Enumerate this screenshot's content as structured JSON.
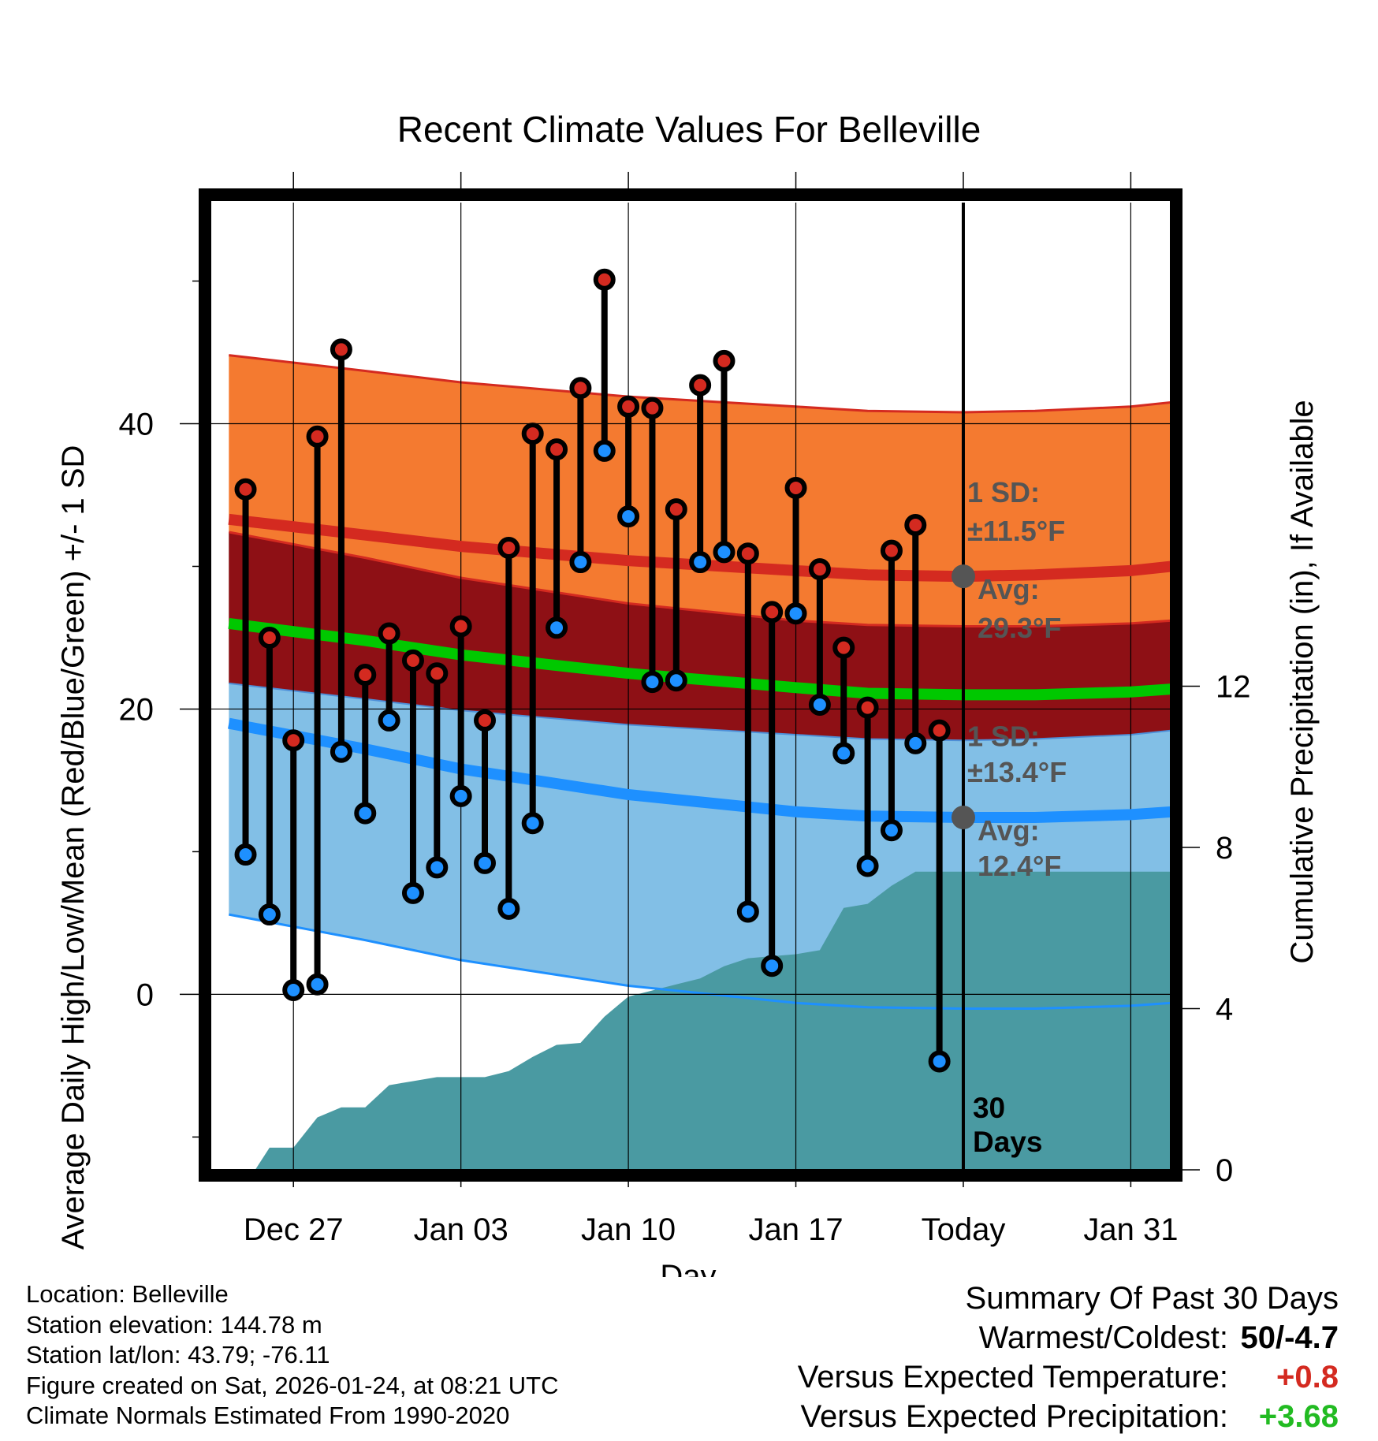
{
  "chart_data": {
    "type": "line",
    "title": "Recent Climate Values For Belleville",
    "xlabel": "Day",
    "ylabel": "Average Daily High/Low/Mean (Red/Blue/Green) +/- 1 SD",
    "y2label": "Cumulative Precipitation (in), If Available",
    "xlim": [
      -3.5,
      36.7
    ],
    "ylim": [
      -12.3,
      55.5
    ],
    "y2lim": [
      0,
      24
    ],
    "x_ticks": [
      {
        "x": 0,
        "label": "Dec 27"
      },
      {
        "x": 7,
        "label": "Jan 03"
      },
      {
        "x": 14,
        "label": "Jan 10"
      },
      {
        "x": 21,
        "label": "Jan 17"
      },
      {
        "x": 28,
        "label": "Today"
      },
      {
        "x": 35,
        "label": "Jan 31"
      }
    ],
    "y_ticks": [
      0,
      20,
      40
    ],
    "y2_ticks": [
      0,
      4,
      8,
      12
    ],
    "today_x": 28,
    "today_label_line1": "30",
    "today_label_line2": "Days",
    "daily": {
      "x": [
        -2,
        -1,
        0,
        1,
        2,
        3,
        4,
        5,
        6,
        7,
        8,
        9,
        10,
        11,
        12,
        13,
        14,
        15,
        16,
        17,
        18,
        19,
        20,
        21,
        22,
        23,
        24,
        25,
        26,
        27
      ],
      "high": [
        35.4,
        25.0,
        17.8,
        39.1,
        45.2,
        22.4,
        25.3,
        23.4,
        22.5,
        25.8,
        19.2,
        31.3,
        39.3,
        38.2,
        42.5,
        50.1,
        41.2,
        41.1,
        34.0,
        42.7,
        44.4,
        30.9,
        26.8,
        35.5,
        29.8,
        24.3,
        20.1,
        31.1,
        32.9,
        18.5
      ],
      "low": [
        9.8,
        5.6,
        0.3,
        0.7,
        17.0,
        12.7,
        19.2,
        7.1,
        8.9,
        13.9,
        9.2,
        6.0,
        12.0,
        25.7,
        30.3,
        38.1,
        33.5,
        21.9,
        22.0,
        30.3,
        31.0,
        5.8,
        2.0,
        26.7,
        20.3,
        16.9,
        9.0,
        11.5,
        17.6,
        -4.7
      ]
    },
    "normals": {
      "x": [
        -2.7,
        3,
        7,
        14,
        21,
        24,
        28,
        31,
        35,
        36.7
      ],
      "high_avg": [
        33.3,
        32.2,
        31.4,
        30.4,
        29.7,
        29.4,
        29.3,
        29.4,
        29.7,
        30.0
      ],
      "high_sd": 11.5,
      "low_avg": [
        19.0,
        17.2,
        15.8,
        14.0,
        12.8,
        12.5,
        12.4,
        12.4,
        12.6,
        12.8
      ],
      "low_sd": 13.4,
      "mean_avg": [
        26.0,
        24.8,
        23.8,
        22.5,
        21.5,
        21.1,
        21.0,
        21.0,
        21.2,
        21.4
      ]
    },
    "precip": {
      "x": [
        -1.6,
        -1,
        0,
        1,
        2,
        3,
        4,
        5,
        6,
        7,
        8,
        9,
        10,
        11,
        12,
        13,
        14,
        15,
        16,
        17,
        18,
        19,
        20,
        21,
        22,
        23,
        24,
        25,
        26,
        27,
        28,
        36.7
      ],
      "cum": [
        0,
        0.55,
        0.55,
        1.3,
        1.55,
        1.55,
        2.1,
        2.2,
        2.3,
        2.3,
        2.3,
        2.45,
        2.8,
        3.1,
        3.15,
        3.8,
        4.3,
        4.45,
        4.6,
        4.75,
        5.05,
        5.25,
        5.3,
        5.35,
        5.45,
        6.5,
        6.6,
        7.05,
        7.4,
        7.4,
        7.4,
        7.4
      ]
    },
    "annotations": {
      "high_sd_line1": "1 SD:",
      "high_sd_line2": "±11.5°F",
      "high_avg_line1": "Avg:",
      "high_avg_line2": "29.3°F",
      "low_sd_line1": "1 SD:",
      "low_sd_line2": "±13.4°F",
      "low_avg_line1": "Avg:",
      "low_avg_line2": "12.4°F"
    },
    "colors": {
      "high_band": "#f47a30",
      "overlap_band": "#8e1015",
      "low_band": "#82bfe6",
      "high_line": "#d42a20",
      "low_line": "#1e90ff",
      "mean_line": "#00c800",
      "precip": "#4a9aa2",
      "high_marker": "#d42a20",
      "low_marker": "#1e90ff",
      "avg_marker": "#555555"
    }
  },
  "info": {
    "location": "Location: Belleville",
    "elevation": "Station elevation: 144.78 m",
    "latlon": "Station lat/lon: 43.79; -76.11",
    "created": "Figure created on Sat, 2026-01-24, at 08:21 UTC",
    "normals": "Climate Normals Estimated From 1990-2020"
  },
  "summary": {
    "title": "Summary Of Past 30 Days",
    "warmest_label": "Warmest/Coldest:",
    "warmest_value": "50/-4.7",
    "temp_label": "Versus Expected Temperature:",
    "temp_value": "+0.8",
    "temp_color": "#d42a20",
    "precip_label": "Versus Expected Precipitation:",
    "precip_value": "+3.68",
    "precip_color": "#22bb22"
  }
}
